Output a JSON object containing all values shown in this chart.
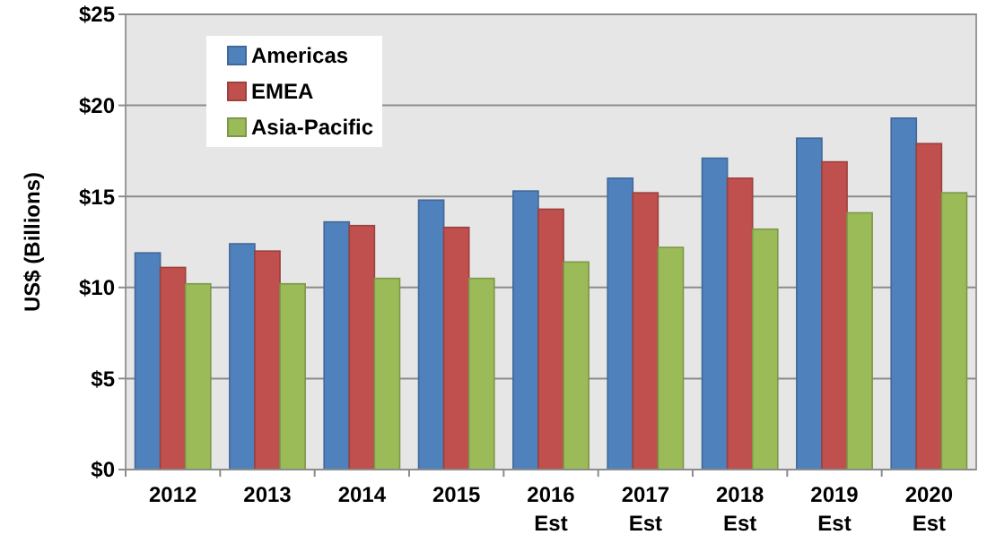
{
  "chart_data": {
    "type": "bar",
    "ylabel": "US$ (Billions)",
    "categories": [
      "2012",
      "2013",
      "2014",
      "2015",
      "2016\nEst",
      "2017\nEst",
      "2018\nEst",
      "2019\nEst",
      "2020\nEst"
    ],
    "series": [
      {
        "name": "Americas",
        "color": "#4f81bd",
        "values": [
          11.9,
          12.4,
          13.6,
          14.8,
          15.3,
          16.0,
          17.1,
          18.2,
          19.3
        ]
      },
      {
        "name": "EMEA",
        "color": "#c0504d",
        "values": [
          11.1,
          12.0,
          13.4,
          13.3,
          14.3,
          15.2,
          16.0,
          16.9,
          17.9
        ]
      },
      {
        "name": "Asia-Pacific",
        "color": "#9bbb59",
        "values": [
          10.2,
          10.2,
          10.5,
          10.5,
          11.4,
          12.2,
          13.2,
          14.1,
          15.2
        ]
      }
    ],
    "ylim": [
      0,
      25
    ],
    "yticks": [
      {
        "value": 0,
        "label": "$0"
      },
      {
        "value": 5,
        "label": "$5"
      },
      {
        "value": 10,
        "label": "$10"
      },
      {
        "value": 15,
        "label": "$15"
      },
      {
        "value": 20,
        "label": "$20"
      },
      {
        "value": 25,
        "label": "$25"
      }
    ],
    "grid": "y",
    "legend": "top left"
  }
}
